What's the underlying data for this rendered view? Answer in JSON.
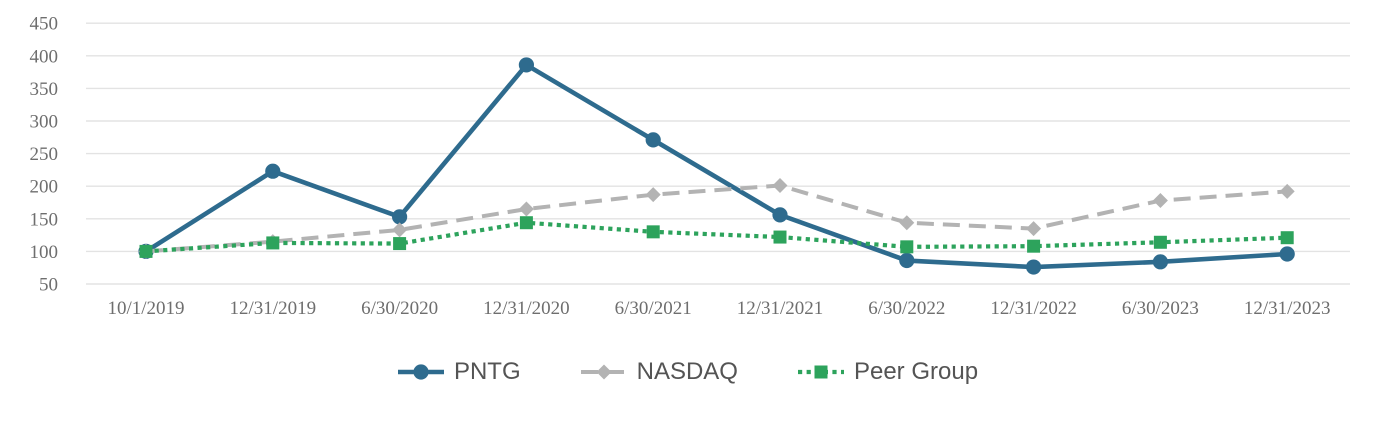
{
  "chart_data": {
    "type": "line",
    "title": "",
    "xlabel": "",
    "ylabel": "",
    "categories": [
      "10/1/2019",
      "12/31/2019",
      "6/30/2020",
      "12/31/2020",
      "6/30/2021",
      "12/31/2021",
      "6/30/2022",
      "12/31/2022",
      "6/30/2023",
      "12/31/2023"
    ],
    "series": [
      {
        "name": "PNTG",
        "values": [
          100,
          223,
          153,
          386,
          271,
          156,
          86,
          76,
          84,
          96
        ],
        "color": "#2E6B8E",
        "marker": "circle",
        "line_style": "solid"
      },
      {
        "name": "NASDAQ",
        "values": [
          100,
          115,
          133,
          165,
          187,
          201,
          144,
          135,
          178,
          192
        ],
        "color": "#B3B3B3",
        "marker": "diamond",
        "line_style": "dashed"
      },
      {
        "name": "Peer Group",
        "values": [
          100,
          113,
          112,
          144,
          130,
          122,
          107,
          108,
          114,
          121
        ],
        "color": "#2DA35C",
        "marker": "square",
        "line_style": "dotted"
      }
    ],
    "ylim": [
      50,
      450
    ],
    "yticks": [
      450,
      400,
      350,
      300,
      250,
      200,
      150,
      100,
      50
    ],
    "grid": "horizontal",
    "legend_position": "bottom",
    "colors": {
      "gridline": "#E3E3E3",
      "axis_text": "#6E6E6E",
      "legend_text": "#545454"
    }
  }
}
